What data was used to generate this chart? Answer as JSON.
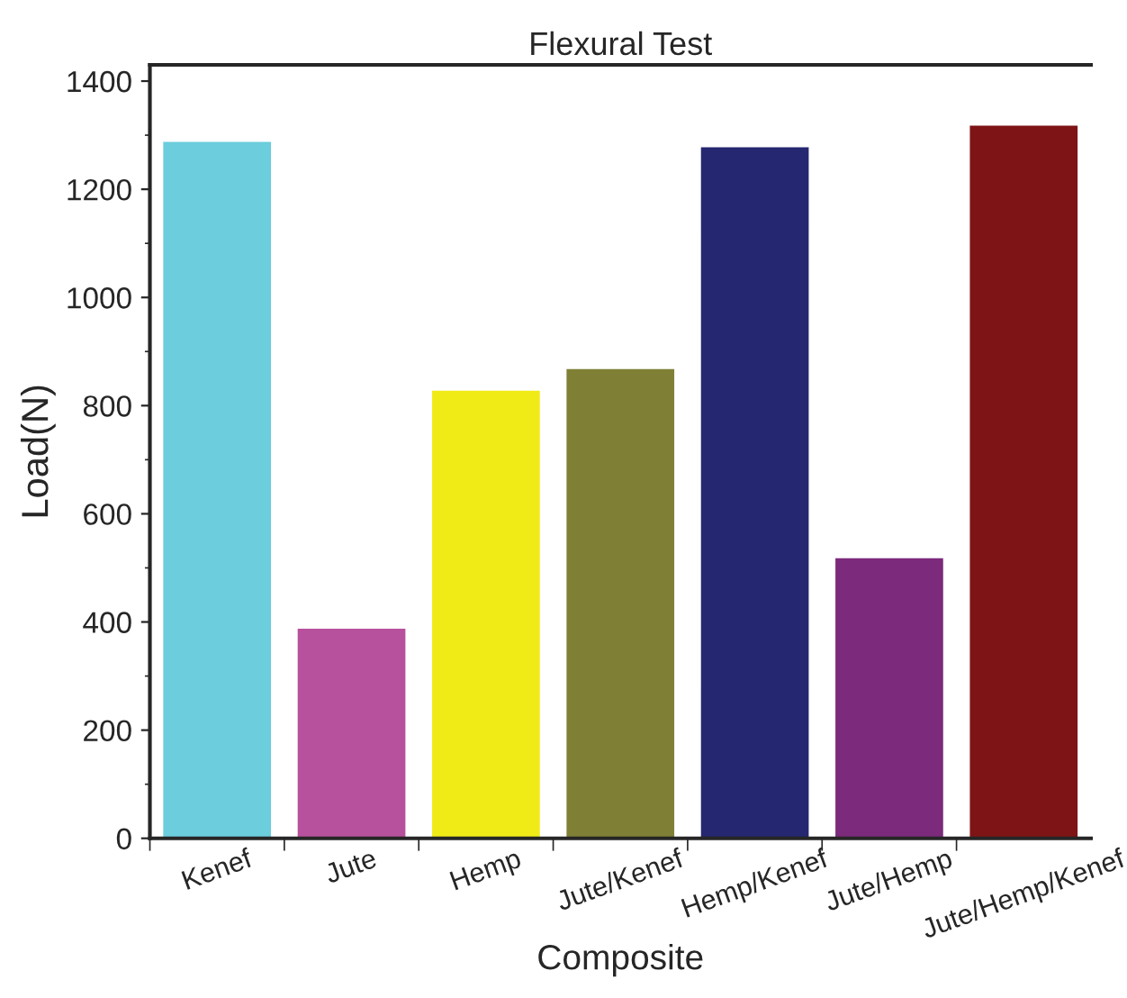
{
  "chart_data": {
    "type": "bar",
    "title": "Flexural Test",
    "xlabel": "Composite",
    "ylabel": "Load(N)",
    "categories": [
      "Kenef",
      "Jute",
      "Hemp",
      "Jute/Kenef",
      "Hemp/Kenef",
      "Jute/Hemp",
      "Jute/Hemp/Kenef"
    ],
    "values": [
      1290,
      390,
      830,
      870,
      1280,
      520,
      1320
    ],
    "colors": [
      "#6ccddc",
      "#b8519d",
      "#f0eb17",
      "#7f8035",
      "#252770",
      "#7c2a7c",
      "#7f1416"
    ],
    "ylim": [
      0,
      1430
    ],
    "yticks": [
      0,
      200,
      400,
      600,
      800,
      1000,
      1200,
      1400
    ],
    "grid": false,
    "legend": false
  }
}
